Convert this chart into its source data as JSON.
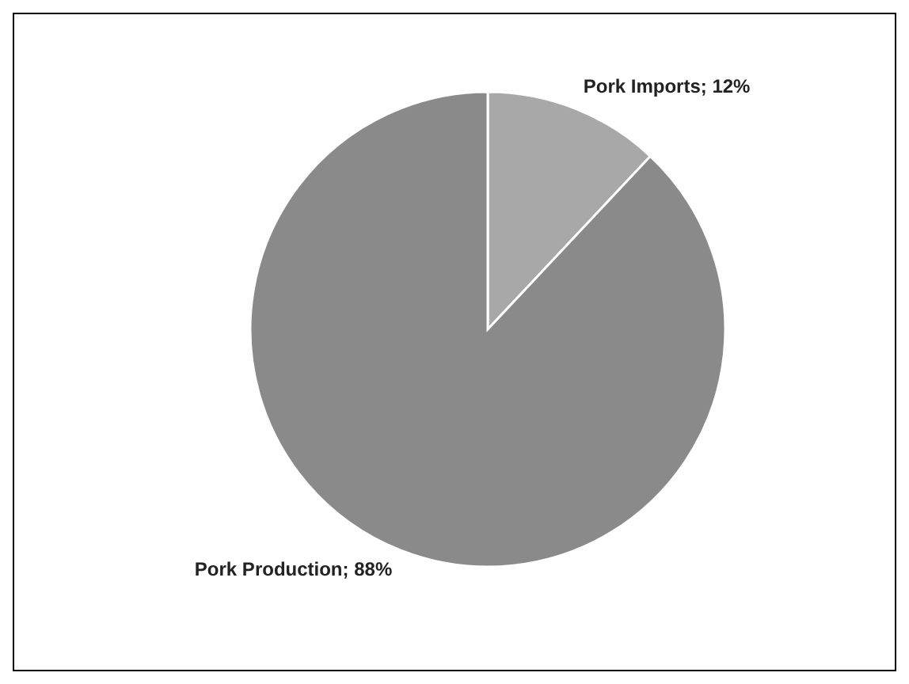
{
  "chart_data": {
    "type": "pie",
    "categories": [
      "Pork Imports",
      "Pork Production"
    ],
    "values": [
      12,
      88
    ],
    "colors": [
      "#a8a8a8",
      "#8a8a8a"
    ],
    "value_labels": [
      "; 12%",
      "; 88%"
    ]
  }
}
